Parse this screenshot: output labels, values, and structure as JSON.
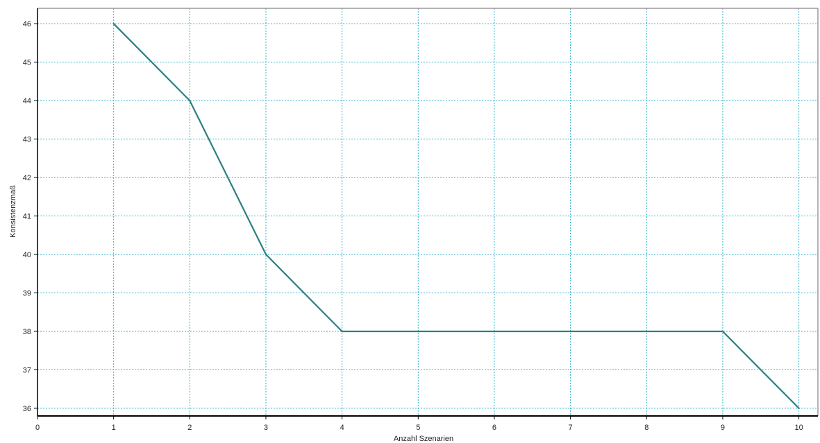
{
  "chart_data": {
    "type": "line",
    "title": "",
    "xlabel": "Anzahl Szenarien",
    "ylabel": "Konsistenzmaß",
    "xlim": [
      0,
      10.25
    ],
    "ylim": [
      35.8,
      46.4
    ],
    "xticks": [
      0,
      1,
      2,
      3,
      4,
      5,
      6,
      7,
      8,
      9,
      10
    ],
    "yticks": [
      36,
      37,
      38,
      39,
      40,
      41,
      42,
      43,
      44,
      45,
      46
    ],
    "grid": true,
    "legend": "none",
    "series": [
      {
        "x": [
          1,
          2,
          3,
          4,
          5,
          6,
          7,
          8,
          9,
          10
        ],
        "values": [
          46,
          44,
          40,
          38,
          38,
          38,
          38,
          38,
          38,
          36
        ]
      }
    ],
    "colors": {
      "line": "#2a8080",
      "grid": "#33b5cc",
      "axis": "#000000",
      "frame": "#9a9a9a"
    }
  }
}
